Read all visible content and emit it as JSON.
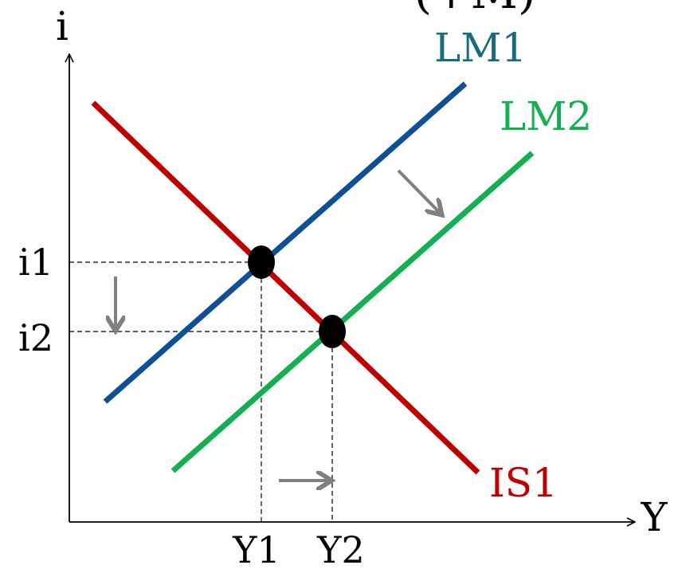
{
  "axes": {
    "y_label": "i",
    "x_label": "Y"
  },
  "title_fragment": "(+M)",
  "curves": {
    "lm1": {
      "label": "LM1",
      "color": "#0f4f96"
    },
    "lm2": {
      "label": "LM2",
      "color": "#12b050"
    },
    "is1": {
      "label": "IS1",
      "color": "#c00000"
    }
  },
  "label_colors": {
    "lm1": "#1a6a80",
    "lm2": "#12b050",
    "is1": "#c00000"
  },
  "equilibria": {
    "e1": {
      "i_label": "i1",
      "y_label": "Y1"
    },
    "e2": {
      "i_label": "i2",
      "y_label": "Y2"
    }
  },
  "colors": {
    "axis": "#000000",
    "arrow": "#808080",
    "point": "#000000"
  },
  "arrows": [
    "shift-right-arrow",
    "interest-down-arrow",
    "output-right-arrow"
  ]
}
